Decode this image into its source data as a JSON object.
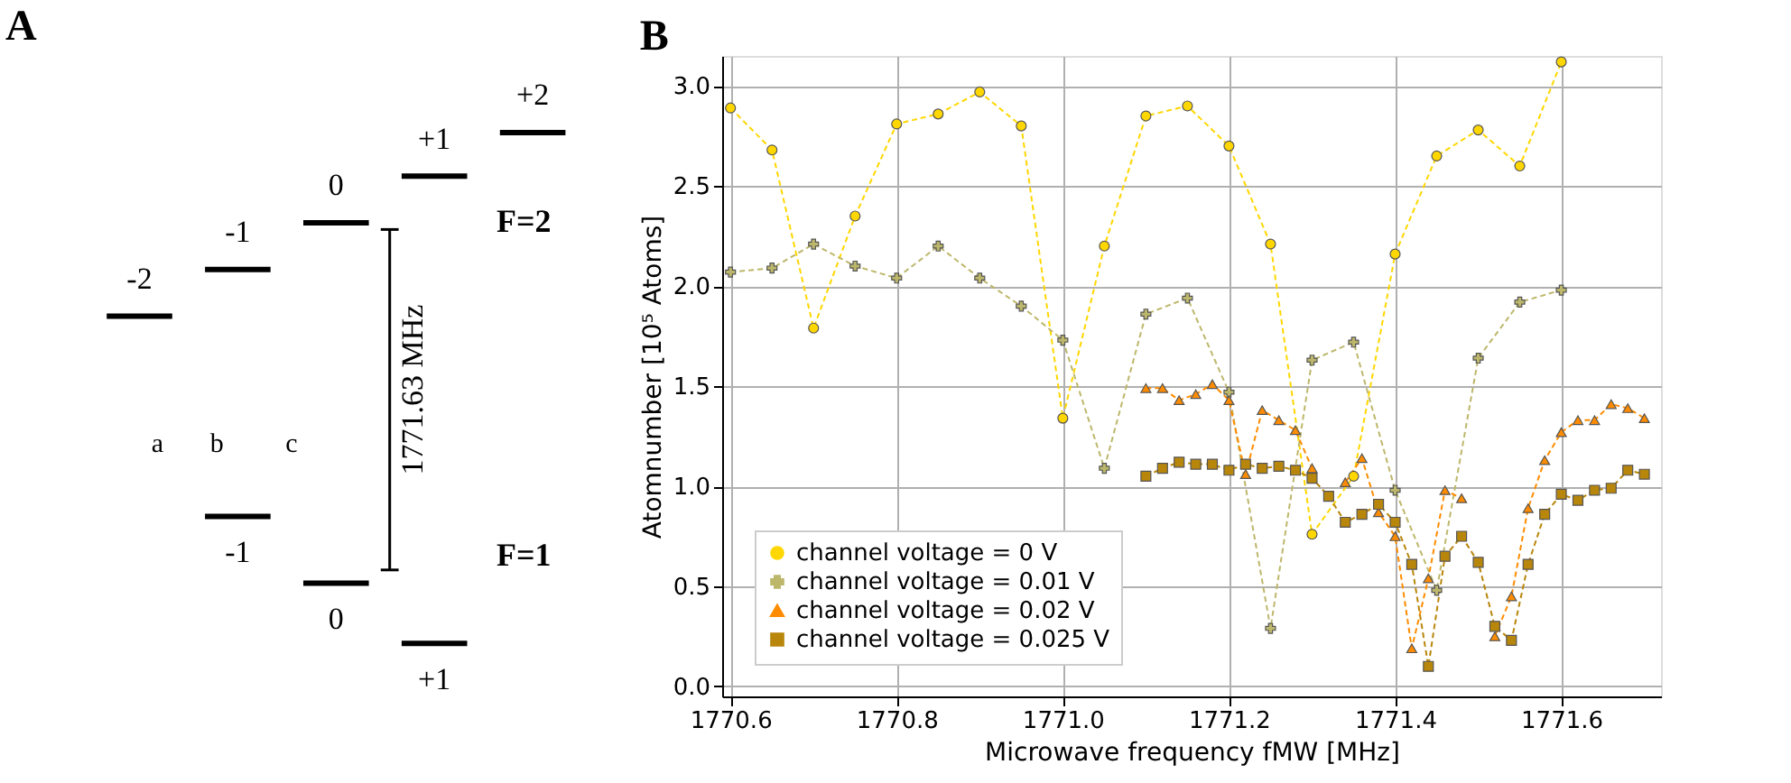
{
  "chart_data": [
    {
      "type": "other",
      "title": "A",
      "annotations": [
        "-2",
        "-1",
        "0",
        "+1",
        "+2",
        "-1",
        "0",
        "+1",
        "a",
        "b",
        "c",
        "1771.63 MHz",
        "F=2",
        "F=1"
      ]
    },
    {
      "type": "line",
      "title": "B",
      "xlabel": "Microwave frequency fMW [MHz]",
      "ylabel": "Atomnumber [10⁵ Atoms]",
      "xlim": [
        1770.59,
        1771.72
      ],
      "ylim": [
        -0.05,
        3.15
      ],
      "xticks": [
        1770.6,
        1770.8,
        {
          "value": 1771.0,
          "label": "1771.0"
        },
        1771.2,
        1771.4,
        1771.6
      ],
      "yticks": [
        {
          "value": 0,
          "label": "0.0"
        },
        0.5,
        {
          "value": 1,
          "label": "1.0"
        },
        1.5,
        {
          "value": 2,
          "label": "2.0"
        },
        2.5,
        {
          "value": 3,
          "label": "3.0"
        }
      ],
      "grid": true,
      "legend": "bottom left",
      "line_style": "dashed",
      "series": [
        {
          "name": "channel voltage = 0 V",
          "color": "#ffd700",
          "marker": "circle",
          "x": [
            1770.6,
            1770.65,
            1770.7,
            1770.75,
            1770.8,
            1770.85,
            1770.9,
            1770.95,
            1771.0,
            1771.05,
            1771.1,
            1771.15,
            1771.2,
            1771.25,
            1771.3,
            1771.35,
            1771.4,
            1771.45,
            1771.5,
            1771.55,
            1771.6
          ],
          "values": [
            2.89,
            2.68,
            1.79,
            2.35,
            2.81,
            2.86,
            2.97,
            2.8,
            1.34,
            2.2,
            2.85,
            2.9,
            2.7,
            2.21,
            0.76,
            1.05,
            2.16,
            2.65,
            2.78,
            2.6,
            3.12
          ]
        },
        {
          "name": "channel voltage = 0.01 V",
          "color": "#bdb76b",
          "marker": "cross",
          "x": [
            1770.6,
            1770.65,
            1770.7,
            1770.75,
            1770.8,
            1770.85,
            1770.9,
            1770.95,
            1771.0,
            1771.05,
            1771.1,
            1771.15,
            1771.2,
            1771.25,
            1771.3,
            1771.35,
            1771.4,
            1771.45,
            1771.5,
            1771.55,
            1771.6
          ],
          "values": [
            2.07,
            2.09,
            2.21,
            2.1,
            2.04,
            2.2,
            2.04,
            1.9,
            1.73,
            1.09,
            1.86,
            1.94,
            1.47,
            0.29,
            1.63,
            1.72,
            0.98,
            0.48,
            1.64,
            1.92,
            1.98
          ]
        },
        {
          "name": "channel voltage = 0.02 V",
          "color": "#ff8c00",
          "marker": "triangle",
          "x": [
            1771.1,
            1771.12,
            1771.14,
            1771.16,
            1771.18,
            1771.2,
            1771.22,
            1771.24,
            1771.26,
            1771.28,
            1771.3,
            1771.32,
            1771.34,
            1771.36,
            1771.38,
            1771.4,
            1771.42,
            1771.44,
            1771.46,
            1771.48,
            1771.5,
            1771.52,
            1771.54,
            1771.56,
            1771.58,
            1771.6,
            1771.62,
            1771.64,
            1771.66,
            1771.68,
            1771.7
          ],
          "values": [
            1.49,
            1.49,
            1.43,
            1.46,
            1.51,
            1.43,
            1.06,
            1.38,
            1.33,
            1.28,
            1.09,
            null,
            1.02,
            1.14,
            0.87,
            0.75,
            0.19,
            0.54,
            0.98,
            0.94,
            null,
            0.25,
            0.45,
            0.89,
            1.13,
            1.27,
            1.33,
            1.33,
            1.41,
            1.39,
            1.34
          ]
        },
        {
          "name": "channel voltage = 0.025 V",
          "color": "#b8860b",
          "marker": "square",
          "x": [
            1771.1,
            1771.12,
            1771.14,
            1771.16,
            1771.18,
            1771.2,
            1771.22,
            1771.24,
            1771.26,
            1771.28,
            1771.3,
            1771.32,
            1771.34,
            1771.36,
            1771.38,
            1771.4,
            1771.42,
            1771.44,
            1771.46,
            1771.48,
            1771.5,
            1771.52,
            1771.54,
            1771.56,
            1771.58,
            1771.6,
            1771.62,
            1771.64,
            1771.66,
            1771.68,
            1771.7
          ],
          "values": [
            1.05,
            1.09,
            1.12,
            1.11,
            1.11,
            1.08,
            1.11,
            1.09,
            1.1,
            1.08,
            1.04,
            0.95,
            0.82,
            0.86,
            0.91,
            0.82,
            0.61,
            0.1,
            0.65,
            0.75,
            0.62,
            0.3,
            0.23,
            0.61,
            0.86,
            0.96,
            0.93,
            0.98,
            0.99,
            1.08,
            1.06
          ]
        }
      ]
    }
  ]
}
